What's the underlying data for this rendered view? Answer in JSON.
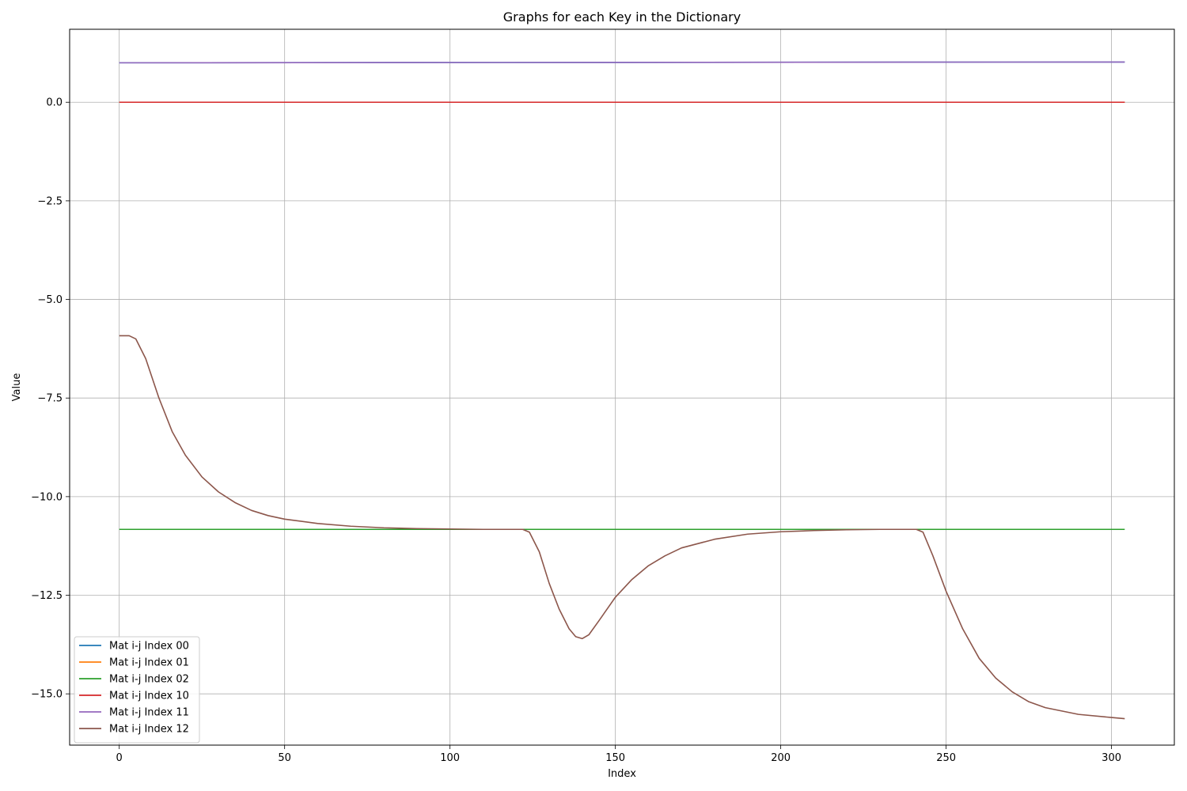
{
  "chart_data": {
    "type": "line",
    "title": "Graphs for each Key in the Dictionary",
    "xlabel": "Index",
    "ylabel": "Value",
    "xlim": [
      -15,
      319
    ],
    "ylim": [
      -16.3,
      1.85
    ],
    "xticks": [
      0,
      50,
      100,
      150,
      200,
      250,
      300
    ],
    "yticks": [
      0.0,
      -2.5,
      -5.0,
      -7.5,
      -10.0,
      -12.5,
      -15.0
    ],
    "xtick_labels": [
      "0",
      "50",
      "100",
      "150",
      "200",
      "250",
      "300"
    ],
    "ytick_labels": [
      "0.0",
      "−2.5",
      "−5.0",
      "−7.5",
      "−10.0",
      "−12.5",
      "−15.0"
    ],
    "grid": true,
    "legend_position": "lower-left",
    "series": [
      {
        "name": "Mat i-j Index 00",
        "color": "#1f77b4",
        "points": [
          [
            0,
            1.0
          ],
          [
            304,
            1.02
          ]
        ]
      },
      {
        "name": "Mat i-j Index 01",
        "color": "#ff7f0e",
        "points": [
          [
            0,
            0.0
          ],
          [
            304,
            0.0
          ]
        ]
      },
      {
        "name": "Mat i-j Index 02",
        "color": "#2ca02c",
        "points": [
          [
            0,
            -10.83
          ],
          [
            304,
            -10.83
          ]
        ]
      },
      {
        "name": "Mat i-j Index 10",
        "color": "#d62728",
        "points": [
          [
            0,
            0.0
          ],
          [
            304,
            0.0
          ]
        ]
      },
      {
        "name": "Mat i-j Index 11",
        "color": "#9467bd",
        "points": [
          [
            0,
            1.0
          ],
          [
            304,
            1.02
          ]
        ]
      },
      {
        "name": "Mat i-j Index 12",
        "color": "#8c564b",
        "points": [
          [
            0,
            -5.92
          ],
          [
            3,
            -5.92
          ],
          [
            5,
            -6.0
          ],
          [
            8,
            -6.5
          ],
          [
            12,
            -7.5
          ],
          [
            16,
            -8.35
          ],
          [
            20,
            -8.95
          ],
          [
            25,
            -9.5
          ],
          [
            30,
            -9.88
          ],
          [
            35,
            -10.15
          ],
          [
            40,
            -10.35
          ],
          [
            45,
            -10.48
          ],
          [
            50,
            -10.57
          ],
          [
            60,
            -10.68
          ],
          [
            70,
            -10.75
          ],
          [
            80,
            -10.79
          ],
          [
            90,
            -10.81
          ],
          [
            100,
            -10.82
          ],
          [
            110,
            -10.83
          ],
          [
            122,
            -10.83
          ],
          [
            124,
            -10.9
          ],
          [
            127,
            -11.4
          ],
          [
            130,
            -12.2
          ],
          [
            133,
            -12.85
          ],
          [
            136,
            -13.35
          ],
          [
            138,
            -13.55
          ],
          [
            140,
            -13.6
          ],
          [
            142,
            -13.5
          ],
          [
            145,
            -13.15
          ],
          [
            150,
            -12.55
          ],
          [
            155,
            -12.1
          ],
          [
            160,
            -11.75
          ],
          [
            165,
            -11.5
          ],
          [
            170,
            -11.3
          ],
          [
            180,
            -11.08
          ],
          [
            190,
            -10.95
          ],
          [
            200,
            -10.89
          ],
          [
            210,
            -10.86
          ],
          [
            220,
            -10.84
          ],
          [
            230,
            -10.83
          ],
          [
            241,
            -10.83
          ],
          [
            243,
            -10.9
          ],
          [
            246,
            -11.5
          ],
          [
            250,
            -12.4
          ],
          [
            255,
            -13.35
          ],
          [
            260,
            -14.1
          ],
          [
            265,
            -14.6
          ],
          [
            270,
            -14.95
          ],
          [
            275,
            -15.2
          ],
          [
            280,
            -15.35
          ],
          [
            290,
            -15.52
          ],
          [
            300,
            -15.6
          ],
          [
            304,
            -15.63
          ]
        ]
      }
    ]
  }
}
